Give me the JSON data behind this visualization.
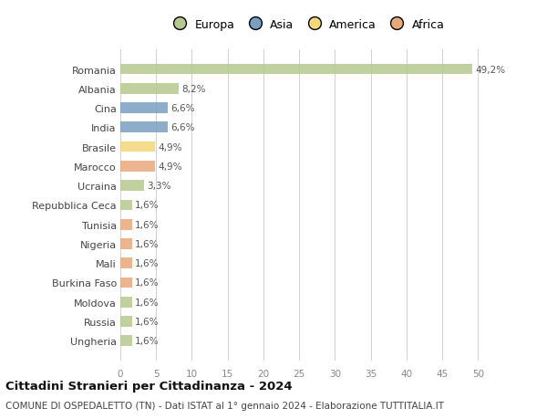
{
  "countries": [
    "Romania",
    "Albania",
    "Cina",
    "India",
    "Brasile",
    "Marocco",
    "Ucraina",
    "Repubblica Ceca",
    "Tunisia",
    "Nigeria",
    "Mali",
    "Burkina Faso",
    "Moldova",
    "Russia",
    "Ungheria"
  ],
  "values": [
    49.2,
    8.2,
    6.6,
    6.6,
    4.9,
    4.9,
    3.3,
    1.6,
    1.6,
    1.6,
    1.6,
    1.6,
    1.6,
    1.6,
    1.6
  ],
  "labels": [
    "49,2%",
    "8,2%",
    "6,6%",
    "6,6%",
    "4,9%",
    "4,9%",
    "3,3%",
    "1,6%",
    "1,6%",
    "1,6%",
    "1,6%",
    "1,6%",
    "1,6%",
    "1,6%",
    "1,6%"
  ],
  "colors": [
    "#b5c98e",
    "#b5c98e",
    "#7a9fc2",
    "#7a9fc2",
    "#f5d87a",
    "#e8a87c",
    "#b5c98e",
    "#b5c98e",
    "#e8a87c",
    "#e8a87c",
    "#e8a87c",
    "#e8a87c",
    "#b5c98e",
    "#b5c98e",
    "#b5c98e"
  ],
  "legend_labels": [
    "Europa",
    "Asia",
    "America",
    "Africa"
  ],
  "legend_colors": [
    "#b5c98e",
    "#7a9fc2",
    "#f5d87a",
    "#e8a87c"
  ],
  "title": "Cittadini Stranieri per Cittadinanza - 2024",
  "subtitle": "COMUNE DI OSPEDALETTO (TN) - Dati ISTAT al 1° gennaio 2024 - Elaborazione TUTTITALIA.IT",
  "xlim": [
    0,
    52
  ],
  "xticks": [
    0,
    5,
    10,
    15,
    20,
    25,
    30,
    35,
    40,
    45,
    50
  ],
  "background_color": "#ffffff",
  "grid_color": "#d0d0d0",
  "bar_height": 0.55
}
